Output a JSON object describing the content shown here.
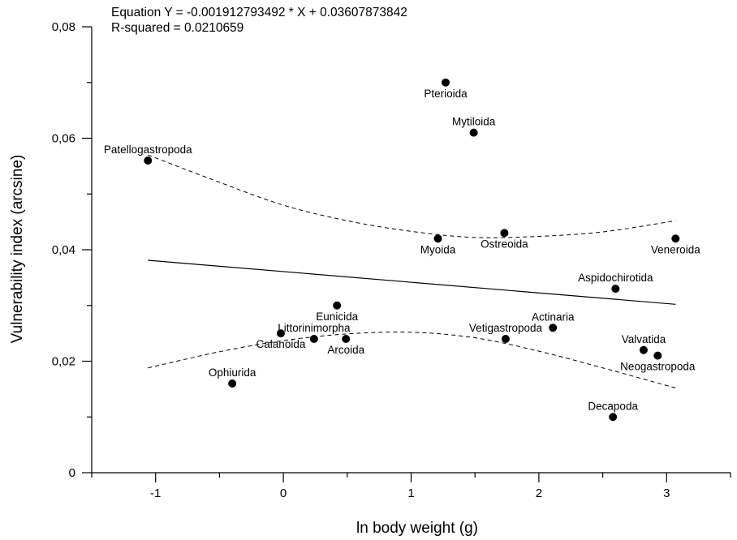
{
  "chart_data": {
    "type": "scatter",
    "title": "",
    "annotations": [
      "Equation Y = -0.001912793492 * X + 0.03607873842",
      "R-squared = 0.0210659"
    ],
    "xlabel": "ln body weight (g)",
    "ylabel": "Vulnerability index (arcsine)",
    "xlim": [
      -1.5,
      3.5
    ],
    "ylim": [
      0,
      0.08
    ],
    "x_ticks": [
      {
        "v": -1,
        "label": "-1"
      },
      {
        "v": 0,
        "label": "0"
      },
      {
        "v": 1,
        "label": "1"
      },
      {
        "v": 2,
        "label": "2"
      },
      {
        "v": 3,
        "label": "3"
      }
    ],
    "y_ticks": [
      {
        "v": 0,
        "label": "0"
      },
      {
        "v": 0.02,
        "label": "0,02"
      },
      {
        "v": 0.04,
        "label": "0,04"
      },
      {
        "v": 0.06,
        "label": "0,06"
      },
      {
        "v": 0.08,
        "label": "0,08"
      }
    ],
    "points": [
      {
        "label": "Patellogastropoda",
        "x": -1.06,
        "y": 0.056,
        "anchor": "above"
      },
      {
        "label": "Ophiurida",
        "x": -0.4,
        "y": 0.016,
        "anchor": "above"
      },
      {
        "label": "Calanoida",
        "x": -0.02,
        "y": 0.025,
        "anchor": "below"
      },
      {
        "label": "Littorinimorpha",
        "x": 0.24,
        "y": 0.024,
        "anchor": "above"
      },
      {
        "label": "Eunicida",
        "x": 0.42,
        "y": 0.03,
        "anchor": "below"
      },
      {
        "label": "Arcoida",
        "x": 0.49,
        "y": 0.024,
        "anchor": "below"
      },
      {
        "label": "Myoida",
        "x": 1.21,
        "y": 0.042,
        "anchor": "below"
      },
      {
        "label": "Pterioida",
        "x": 1.27,
        "y": 0.07,
        "anchor": "below"
      },
      {
        "label": "Mytiloida",
        "x": 1.49,
        "y": 0.061,
        "anchor": "above"
      },
      {
        "label": "Ostreoida",
        "x": 1.73,
        "y": 0.043,
        "anchor": "below"
      },
      {
        "label": "Vetigastropoda",
        "x": 1.74,
        "y": 0.024,
        "anchor": "above"
      },
      {
        "label": "Actinaria",
        "x": 2.11,
        "y": 0.026,
        "anchor": "above"
      },
      {
        "label": "Decapoda",
        "x": 2.58,
        "y": 0.01,
        "anchor": "above"
      },
      {
        "label": "Aspidochirotida",
        "x": 2.6,
        "y": 0.033,
        "anchor": "above"
      },
      {
        "label": "Valvatida",
        "x": 2.82,
        "y": 0.022,
        "anchor": "above"
      },
      {
        "label": "Neogastropoda",
        "x": 2.93,
        "y": 0.021,
        "anchor": "below"
      },
      {
        "label": "Veneroida",
        "x": 3.07,
        "y": 0.042,
        "anchor": "below"
      }
    ],
    "regression": {
      "slope": -0.001912793492,
      "intercept": 0.03607873842,
      "x_range": [
        -1.06,
        3.07
      ]
    },
    "confidence_band": {
      "upper": [
        {
          "x": -1.06,
          "y": 0.057
        },
        {
          "x": -0.5,
          "y": 0.0521
        },
        {
          "x": 0.0,
          "y": 0.048
        },
        {
          "x": 0.5,
          "y": 0.0452
        },
        {
          "x": 1.0,
          "y": 0.0433
        },
        {
          "x": 1.5,
          "y": 0.0422
        },
        {
          "x": 2.0,
          "y": 0.0424
        },
        {
          "x": 2.5,
          "y": 0.0432
        },
        {
          "x": 3.07,
          "y": 0.0452
        }
      ],
      "lower": [
        {
          "x": -1.06,
          "y": 0.0188
        },
        {
          "x": -0.5,
          "y": 0.0217
        },
        {
          "x": 0.0,
          "y": 0.0237
        },
        {
          "x": 0.5,
          "y": 0.0249
        },
        {
          "x": 1.0,
          "y": 0.0252
        },
        {
          "x": 1.5,
          "y": 0.0242
        },
        {
          "x": 2.0,
          "y": 0.0218
        },
        {
          "x": 2.5,
          "y": 0.0188
        },
        {
          "x": 3.07,
          "y": 0.0152
        }
      ]
    },
    "grid": false,
    "legend": "none",
    "colors": {
      "points": "#000000",
      "lines": "#000000"
    }
  }
}
